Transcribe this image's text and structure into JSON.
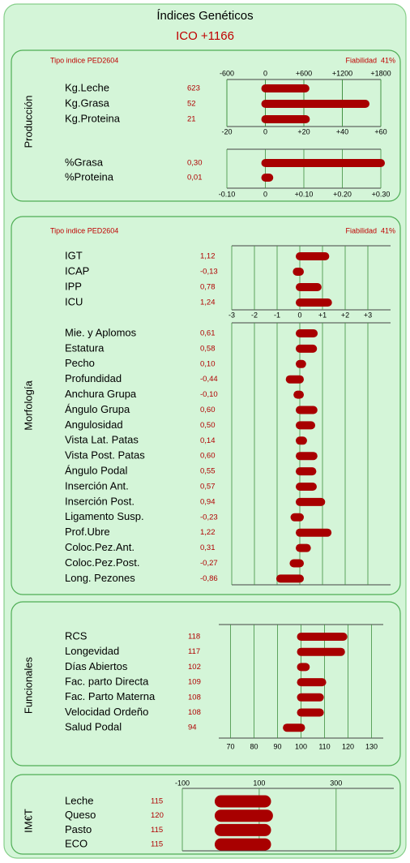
{
  "title": "Índices Genéticos",
  "ico": "ICO +1166",
  "sections": [
    {
      "name": "Producción",
      "tipo": "Tipo indice PED2604",
      "fiabilidad": "Fiabilidad  41%",
      "charts": [
        {
          "baseline": 0,
          "axis": {
            "side": "top",
            "xlim": [
              -600,
              1800
            ],
            "xticks": [
              -600,
              0,
              {
                "value": 600,
                "label": "+600"
              },
              {
                "value": 1200,
                "label": "+1200"
              },
              {
                "value": 1800,
                "label": "+1800"
              }
            ]
          },
          "axis2": {
            "side": "bottom",
            "xlim": [
              -20,
              60
            ],
            "xticks": [
              -20,
              0,
              {
                "value": 20,
                "label": "+20"
              },
              {
                "value": 40,
                "label": "+40"
              },
              {
                "value": 60,
                "label": "+60"
              }
            ]
          },
          "groups": [
            [
              {
                "label": "Kg.Leche",
                "value": 623
              },
              {
                "label": "Kg.Grasa",
                "value": 52,
                "axis": "axis2"
              },
              {
                "label": "Kg.Proteina",
                "value": 21,
                "axis": "axis2"
              }
            ]
          ]
        },
        {
          "baseline": 0,
          "axis": {
            "side": "bottom",
            "xlim": [
              -0.1,
              0.3
            ],
            "xticks": [
              {
                "value": -0.1,
                "label": "-0.10"
              },
              0,
              {
                "value": 0.1,
                "label": "+0.10"
              },
              {
                "value": 0.2,
                "label": "+0.20"
              },
              {
                "value": 0.3,
                "label": "+0.30"
              }
            ]
          },
          "groups": [
            [
              {
                "label": "%Grasa",
                "value": 0.3,
                "value_label": "0,30"
              },
              {
                "label": "%Proteina",
                "value": 0.01,
                "value_label": "0,01"
              }
            ]
          ]
        }
      ]
    },
    {
      "name": "Morfología",
      "tipo": "Tipo indice PED2604",
      "fiabilidad": "Fiabilidad  41%",
      "charts": [
        {
          "baseline": 0,
          "axis": {
            "side": "bottom",
            "xlim": [
              -3,
              4
            ],
            "xticks": [
              -3,
              -2,
              -1,
              0,
              {
                "value": 1,
                "label": "+1"
              },
              {
                "value": 2,
                "label": "+2"
              },
              {
                "value": 3,
                "label": "+3"
              }
            ]
          },
          "groups": [
            [
              {
                "label": "IGT",
                "value": 1.12,
                "value_label": "1,12"
              },
              {
                "label": "ICAP",
                "value": -0.13,
                "value_label": "-0,13"
              },
              {
                "label": "IPP",
                "value": 0.78,
                "value_label": "0,78"
              },
              {
                "label": "ICU",
                "value": 1.24,
                "value_label": "1,24"
              }
            ],
            [
              {
                "label": "Mie. y Aplomos",
                "value": 0.61,
                "value_label": "0,61"
              },
              {
                "label": "Estatura",
                "value": 0.58,
                "value_label": "0,58"
              },
              {
                "label": "Pecho",
                "value": 0.1,
                "value_label": "0,10"
              },
              {
                "label": "Profundidad",
                "value": -0.44,
                "value_label": "-0,44"
              },
              {
                "label": "Anchura Grupa",
                "value": -0.1,
                "value_label": "-0,10"
              },
              {
                "label": "Ángulo Grupa",
                "value": 0.6,
                "value_label": "0,60"
              },
              {
                "label": "Angulosidad",
                "value": 0.5,
                "value_label": "0,50"
              },
              {
                "label": "Vista Lat. Patas",
                "value": 0.14,
                "value_label": "0,14"
              },
              {
                "label": "Vista Post. Patas",
                "value": 0.6,
                "value_label": "0,60"
              },
              {
                "label": "Ángulo Podal",
                "value": 0.55,
                "value_label": "0,55"
              },
              {
                "label": "Inserción Ant.",
                "value": 0.57,
                "value_label": "0,57"
              },
              {
                "label": "Inserción Post.",
                "value": 0.94,
                "value_label": "0,94"
              },
              {
                "label": "Ligamento Susp.",
                "value": -0.23,
                "value_label": "-0,23"
              },
              {
                "label": "Prof.Ubre",
                "value": 1.22,
                "value_label": "1,22"
              },
              {
                "label": "Coloc.Pez.Ant.",
                "value": 0.31,
                "value_label": "0,31"
              },
              {
                "label": "Coloc.Pez.Post.",
                "value": -0.27,
                "value_label": "-0,27"
              },
              {
                "label": "Long. Pezones",
                "value": -0.86,
                "value_label": "-0,86"
              }
            ]
          ]
        }
      ]
    },
    {
      "name": "Funcionales",
      "charts": [
        {
          "baseline": 100,
          "axis": {
            "side": "bottom",
            "xlim": [
              65,
              135
            ],
            "xticks": [
              70,
              80,
              90,
              100,
              110,
              120,
              130
            ]
          },
          "groups": [
            [
              {
                "label": "RCS",
                "value": 118
              },
              {
                "label": "Longevidad",
                "value": 117
              },
              {
                "label": "Días Abiertos",
                "value": 102
              },
              {
                "label": "Fac. parto Directa",
                "value": 109
              },
              {
                "label": "Fac. Parto Materna",
                "value": 108
              },
              {
                "label": "Velocidad Ordeño",
                "value": 108
              },
              {
                "label": "Salud Podal",
                "value": 94
              }
            ]
          ]
        }
      ]
    },
    {
      "name": "IM€T",
      "charts": [
        {
          "baseline": 0,
          "axis": {
            "side": "top",
            "xlim": [
              -100,
              450
            ],
            "xticks": [
              -100,
              100,
              300
            ]
          },
          "groups": [
            [
              {
                "label": "Leche",
                "value": 115
              },
              {
                "label": "Queso",
                "value": 120
              },
              {
                "label": "Pasto",
                "value": 115
              },
              {
                "label": "ECO",
                "value": 115
              }
            ]
          ]
        }
      ]
    }
  ]
}
